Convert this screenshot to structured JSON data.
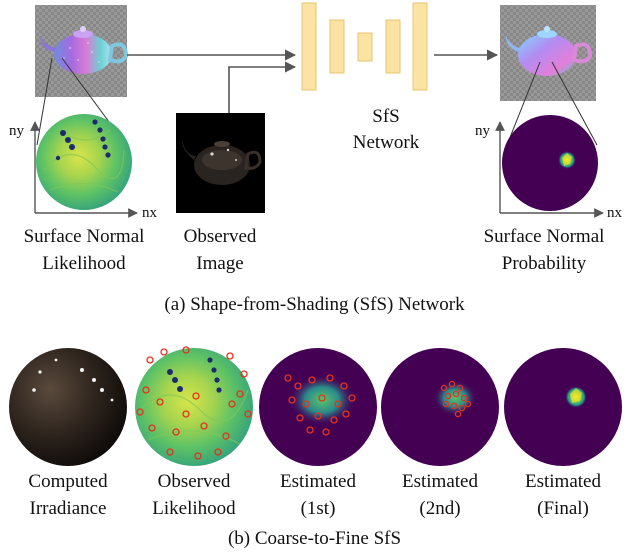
{
  "section_a": {
    "caption": "(a) Shape-from-Shading (SfS) Network",
    "network": {
      "line1": "SfS",
      "line2": "Network"
    },
    "likelihood": {
      "line1": "Surface Normal",
      "line2": "Likelihood",
      "axis_x": "nx",
      "axis_y": "ny"
    },
    "observed": {
      "line1": "Observed",
      "line2": "Image"
    },
    "probability": {
      "line1": "Surface Normal",
      "line2": "Probability",
      "axis_x": "nx",
      "axis_y": "ny"
    }
  },
  "section_b": {
    "caption": "(b) Coarse-to-Fine SfS",
    "items": [
      {
        "line1": "Computed",
        "line2": "Irradiance"
      },
      {
        "line1": "Observed",
        "line2": "Likelihood"
      },
      {
        "line1": "Estimated",
        "line2": "(1st)"
      },
      {
        "line1": "Estimated",
        "line2": "(2nd)"
      },
      {
        "line1": "Estimated",
        "line2": "(Final)"
      }
    ]
  },
  "colors": {
    "network_block": "#fbe3a4",
    "network_block_border": "#e7c46e",
    "arrow": "#555555",
    "viridis_dark": "#440154",
    "viridis_teal": "#21918c",
    "viridis_yellow": "#fde725",
    "sample_marker": "#e8301c",
    "checker": "#8a8a8a"
  }
}
